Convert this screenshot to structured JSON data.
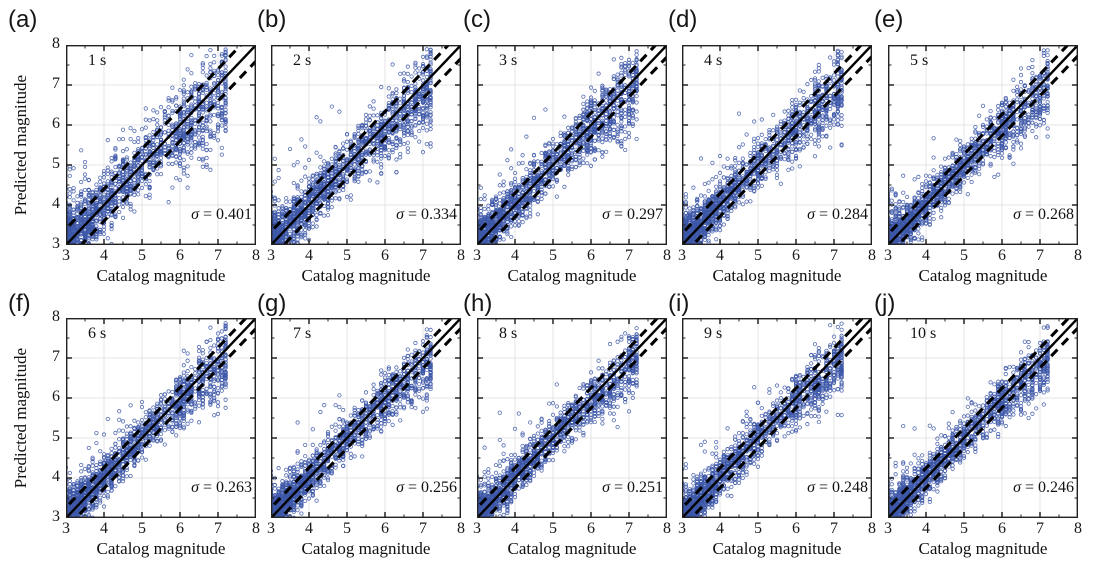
{
  "figure_name": "predicted-vs-catalog-magnitude-time-windows",
  "chart_data": {
    "type": "scatter",
    "xlabel": "Catalog magnitude",
    "ylabel": "Predicted magnitude",
    "xlim": [
      3,
      8
    ],
    "ylim": [
      3,
      8
    ],
    "xticks": [
      "3",
      "4",
      "5",
      "6",
      "7",
      "8"
    ],
    "yticks": [
      "3",
      "4",
      "5",
      "6",
      "7",
      "8"
    ],
    "xtick_values": [
      3,
      4,
      5,
      6,
      7,
      8
    ],
    "ytick_values": [
      3,
      4,
      5,
      6,
      7,
      8
    ],
    "minor_tick_step": 0.5,
    "grid": true,
    "reference_lines": {
      "solid": "y = x",
      "dashed": "y = x ± σ"
    },
    "sigma_symbol": "σ",
    "marker": "open-circle",
    "points_note": "dense scatter cloud along 1:1 line, spread shrinking with longer time window; point clouds synthesized from sigma",
    "panels": [
      {
        "letter": "(a)",
        "window_label": "1 s",
        "sigma": 0.401,
        "sigma_text": " = 0.401"
      },
      {
        "letter": "(b)",
        "window_label": "2 s",
        "sigma": 0.334,
        "sigma_text": " = 0.334"
      },
      {
        "letter": "(c)",
        "window_label": "3 s",
        "sigma": 0.297,
        "sigma_text": " = 0.297"
      },
      {
        "letter": "(d)",
        "window_label": "4 s",
        "sigma": 0.284,
        "sigma_text": " = 0.284"
      },
      {
        "letter": "(e)",
        "window_label": "5 s",
        "sigma": 0.268,
        "sigma_text": " = 0.268"
      },
      {
        "letter": "(f)",
        "window_label": "6 s",
        "sigma": 0.263,
        "sigma_text": " = 0.263"
      },
      {
        "letter": "(g)",
        "window_label": "7 s",
        "sigma": 0.256,
        "sigma_text": " = 0.256"
      },
      {
        "letter": "(h)",
        "window_label": "8 s",
        "sigma": 0.251,
        "sigma_text": " = 0.251"
      },
      {
        "letter": "(i)",
        "window_label": "9 s",
        "sigma": 0.248,
        "sigma_text": " = 0.248"
      },
      {
        "letter": "(j)",
        "window_label": "10 s",
        "sigma": 0.246,
        "sigma_text": " = 0.246"
      }
    ]
  },
  "style": {
    "marker_color": "#3E58A8",
    "grid_color": "#e4e4e4",
    "axis_color": "#222222",
    "line_color": "#000000",
    "background": "#ffffff"
  }
}
